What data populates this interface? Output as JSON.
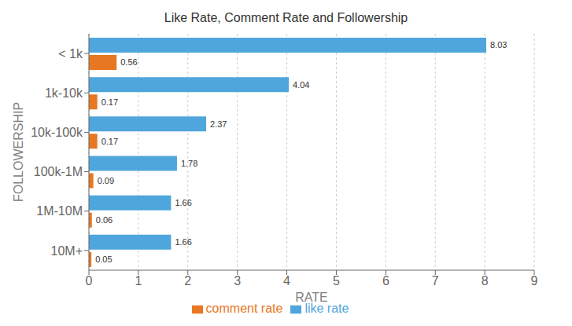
{
  "chart_data": {
    "type": "bar",
    "title": "Like Rate, Comment Rate and Followership",
    "categories": [
      "< 1k",
      "1k-10k",
      "10k-100k",
      "100k-1M",
      "1M-10M",
      "10M+"
    ],
    "series": [
      {
        "name": "like rate",
        "color": "#4EA6DC",
        "values": [
          8.03,
          4.04,
          2.37,
          1.78,
          1.66,
          1.66
        ]
      },
      {
        "name": "comment rate",
        "color": "#E87722",
        "values": [
          0.56,
          0.17,
          0.17,
          0.09,
          0.06,
          0.05
        ]
      }
    ],
    "xlabel": "RATE",
    "ylabel": "FOLLOWERSHIP",
    "xlim": [
      0,
      9
    ],
    "xticks": [
      0,
      1,
      2,
      3,
      4,
      5,
      6,
      7,
      8,
      9
    ],
    "orientation": "horizontal",
    "grid": true,
    "legend": "bottom",
    "data_labels": true
  }
}
